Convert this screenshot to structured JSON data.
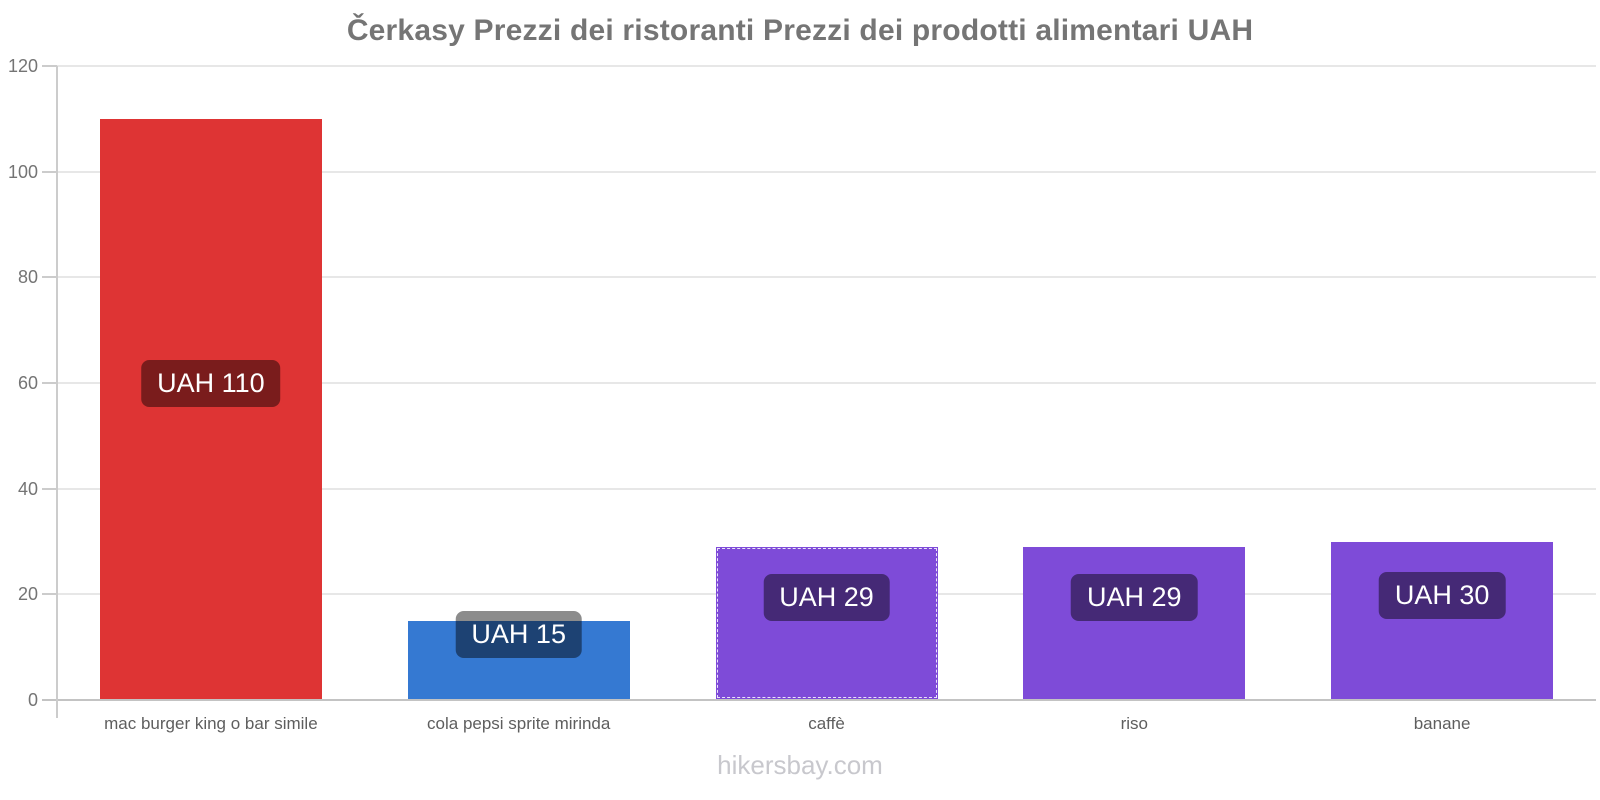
{
  "title": "Čerkasy Prezzi dei ristoranti Prezzi dei prodotti alimentari UAH",
  "footer": "hikersbay.com",
  "chart_data": {
    "type": "bar",
    "title": "Čerkasy Prezzi dei ristoranti Prezzi dei prodotti alimentari UAH",
    "currency": "UAH",
    "categories": [
      "mac burger king o bar simile",
      "cola pepsi sprite mirinda",
      "caffè",
      "riso",
      "banane"
    ],
    "values": [
      110,
      15,
      29,
      29,
      30
    ],
    "bar_labels": [
      "UAH 110",
      "UAH 15",
      "UAH 29",
      "UAH 29",
      "UAH 30"
    ],
    "bar_colors": [
      "#de3434",
      "#3579d2",
      "#7e4bd8",
      "#7e4bd8",
      "#7e4bd8"
    ],
    "highlighted_index": 2,
    "yticks": [
      0,
      20,
      40,
      60,
      80,
      100,
      120
    ],
    "ylim": [
      0,
      120
    ],
    "grid": true,
    "legend": false,
    "label_style": {
      "background": "rgba(0,0,0,0.45)",
      "text_color": "#ffffff"
    }
  },
  "colors": {
    "background": "#ffffff",
    "title": "#757575",
    "axis_line": "#cccccc",
    "baseline": "#c3c3c3",
    "gridline": "#e7e7e7",
    "y_tick_label": "#747474",
    "x_axis_label": "#5e5e5e",
    "footer": "#c8c8cd"
  }
}
